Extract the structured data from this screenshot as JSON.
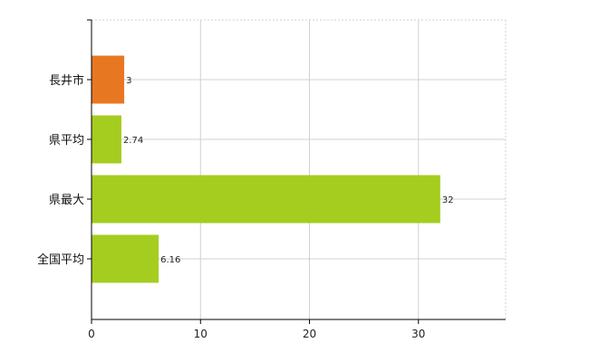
{
  "chart_data": {
    "type": "bar",
    "orientation": "horizontal",
    "categories": [
      "長井市",
      "県平均",
      "県最大",
      "全国平均"
    ],
    "values": [
      3,
      2.74,
      32,
      6.16
    ],
    "value_labels": [
      "3",
      "2.74",
      "32",
      "6.16"
    ],
    "xlim": [
      0,
      38
    ],
    "xticks": [
      "0",
      "10",
      "20",
      "30"
    ],
    "grid": true,
    "colors": {
      "highlight": "#E87722",
      "default": "#A5CD1F",
      "grid": "#d0d0d0",
      "axis": "#000000"
    },
    "highlight_index": 0
  }
}
